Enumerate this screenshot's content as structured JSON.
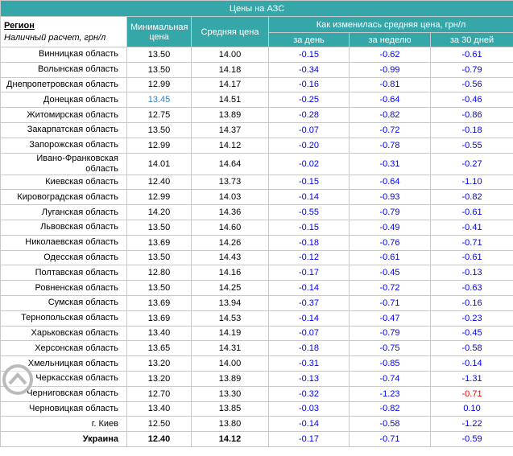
{
  "header": {
    "title": "Цены на АЗС",
    "region": "Регион",
    "payment": "Наличный расчет, грн/л",
    "min_price": "Минимальная цена",
    "avg_price": "Средняя цена",
    "change": "Как изменилась средняя цена, грн/л",
    "day": "за день",
    "week": "за неделю",
    "month": "за 30 дней"
  },
  "table": {
    "change_color": "#0000ee",
    "cell_colors": [
      {
        "row": 3,
        "column": 1,
        "color": "#2e7fc1"
      },
      {
        "row": 22,
        "column": 5,
        "color": "#ee0000"
      }
    ],
    "rows": [
      [
        "Винницкая область",
        "13.50",
        "14.00",
        "-0.15",
        "-0.62",
        "-0.61"
      ],
      [
        "Волынская область",
        "13.50",
        "14.18",
        "-0.34",
        "-0.99",
        "-0.79"
      ],
      [
        "Днепропетровская область",
        "12.99",
        "14.17",
        "-0.16",
        "-0.81",
        "-0.56"
      ],
      [
        "Донецкая область",
        "13.45",
        "14.51",
        "-0.25",
        "-0.64",
        "-0.46"
      ],
      [
        "Житомирская область",
        "12.75",
        "13.89",
        "-0.28",
        "-0.82",
        "-0.86"
      ],
      [
        "Закарпатская область",
        "13.50",
        "14.37",
        "-0.07",
        "-0.72",
        "-0.18"
      ],
      [
        "Запорожская область",
        "12.99",
        "14.12",
        "-0.20",
        "-0.78",
        "-0.55"
      ],
      [
        "Ивано-Франковская область",
        "14.01",
        "14.64",
        "-0.02",
        "-0.31",
        "-0.27"
      ],
      [
        "Киевская область",
        "12.40",
        "13.73",
        "-0.15",
        "-0.64",
        "-1.10"
      ],
      [
        "Кировоградская область",
        "12.99",
        "14.03",
        "-0.14",
        "-0.93",
        "-0.82"
      ],
      [
        "Луганская область",
        "14.20",
        "14.36",
        "-0.55",
        "-0.79",
        "-0.61"
      ],
      [
        "Львовская область",
        "13.50",
        "14.60",
        "-0.15",
        "-0.49",
        "-0.41"
      ],
      [
        "Николаевская область",
        "13.69",
        "14.26",
        "-0.18",
        "-0.76",
        "-0.71"
      ],
      [
        "Одесская область",
        "13.50",
        "14.43",
        "-0.12",
        "-0.61",
        "-0.61"
      ],
      [
        "Полтавская область",
        "12.80",
        "14.16",
        "-0.17",
        "-0.45",
        "-0.13"
      ],
      [
        "Ровненская область",
        "13.50",
        "14.25",
        "-0.14",
        "-0.72",
        "-0.63"
      ],
      [
        "Сумская область",
        "13.69",
        "13.94",
        "-0.37",
        "-0.71",
        "-0.16"
      ],
      [
        "Тернопольская область",
        "13.69",
        "14.53",
        "-0.14",
        "-0.47",
        "-0.23"
      ],
      [
        "Харьковская область",
        "13.40",
        "14.19",
        "-0.07",
        "-0.79",
        "-0.45"
      ],
      [
        "Херсонская область",
        "13.65",
        "14.31",
        "-0.18",
        "-0.75",
        "-0.58"
      ],
      [
        "Хмельницкая область",
        "13.20",
        "14.00",
        "-0.31",
        "-0.85",
        "-0.14"
      ],
      [
        "Черкасская область",
        "13.20",
        "13.89",
        "-0.13",
        "-0.74",
        "-1.31"
      ],
      [
        "Черниговская область",
        "12.70",
        "13.30",
        "-0.32",
        "-1.23",
        "-0.71"
      ],
      [
        "Черновицкая область",
        "13.40",
        "13.85",
        "-0.03",
        "-0.82",
        "0.10"
      ],
      [
        "г. Киев",
        "12.50",
        "13.80",
        "-0.14",
        "-0.58",
        "-1.22"
      ]
    ],
    "total": [
      "Украина",
      "12.40",
      "14.12",
      "-0.17",
      "-0.71",
      "-0.59"
    ]
  }
}
